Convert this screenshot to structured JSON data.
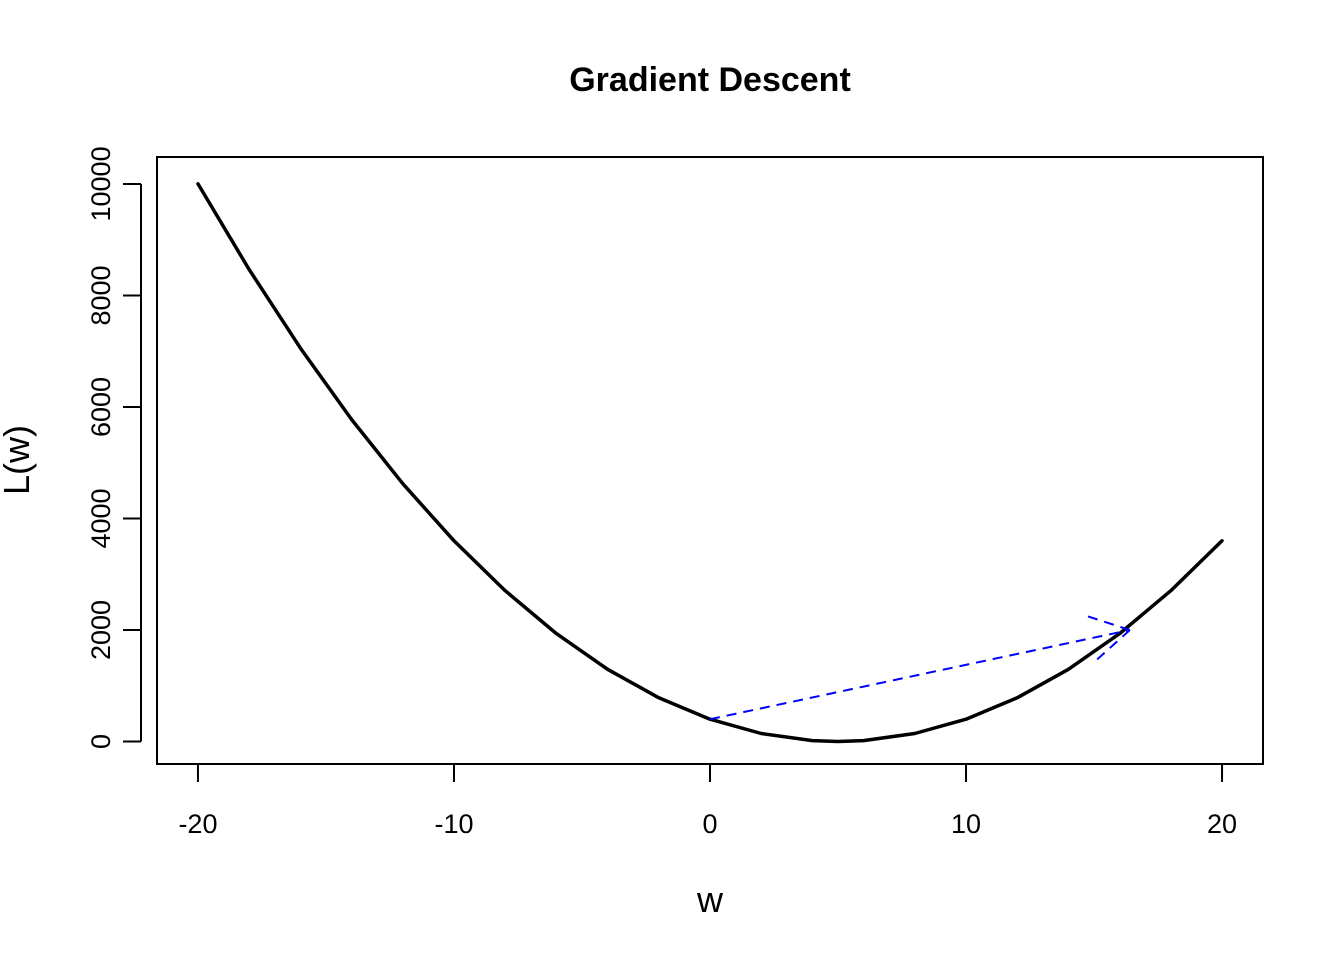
{
  "chart_data": {
    "type": "line",
    "title": "Gradient Descent",
    "xlabel": "w",
    "ylabel": "L(w)",
    "xlim": [
      -21.6,
      21.6
    ],
    "ylim": [
      -403.2,
      10483.2
    ],
    "grid": false,
    "legend": "none",
    "xticks": [
      -20,
      -10,
      0,
      10,
      20
    ],
    "xtick_labels": [
      "-20",
      "-10",
      "0",
      "10",
      "20"
    ],
    "yticks": [
      0,
      2000,
      4000,
      6000,
      8000,
      10000
    ],
    "ytick_labels": [
      "0",
      "2000",
      "4000",
      "6000",
      "8000",
      "10000"
    ],
    "curve": {
      "color": "#000000",
      "x": [
        -20,
        -18,
        -16,
        -14,
        -12,
        -10,
        -8,
        -6,
        -4,
        -2,
        0,
        2,
        4,
        5,
        6,
        8,
        10,
        12,
        14,
        16,
        18,
        20
      ],
      "y": [
        10000,
        8464,
        7056,
        5776,
        4624,
        3600,
        2704,
        1936,
        1296,
        784,
        400,
        144,
        16,
        0,
        16,
        144,
        400,
        784,
        1296,
        1936,
        2704,
        3600
      ]
    },
    "step_arrow": {
      "color": "#0000ff",
      "style": "dashed",
      "from": [
        0,
        400
      ],
      "to": [
        16.4,
        2000
      ]
    }
  }
}
